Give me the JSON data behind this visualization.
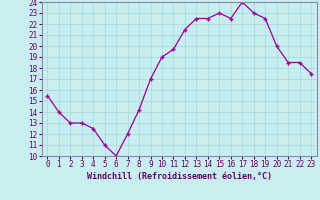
{
  "x": [
    0,
    1,
    2,
    3,
    4,
    5,
    6,
    7,
    8,
    9,
    10,
    11,
    12,
    13,
    14,
    15,
    16,
    17,
    18,
    19,
    20,
    21,
    22,
    23
  ],
  "y": [
    15.5,
    14.0,
    13.0,
    13.0,
    12.5,
    11.0,
    10.0,
    12.0,
    14.2,
    17.0,
    19.0,
    19.7,
    21.5,
    22.5,
    22.5,
    23.0,
    22.5,
    24.0,
    23.0,
    22.5,
    20.0,
    18.5,
    18.5,
    17.5
  ],
  "xlabel": "Windchill (Refroidissement éolien,°C)",
  "ylabel": "",
  "title": "",
  "bg_color": "#c8eef0",
  "line_color": "#990099",
  "marker_color": "#990099",
  "grid_color": "#aadddd",
  "spine_color": "#8888aa",
  "tick_color": "#660066",
  "xlim": [
    -0.5,
    23.5
  ],
  "ylim": [
    10,
    24
  ],
  "yticks": [
    10,
    11,
    12,
    13,
    14,
    15,
    16,
    17,
    18,
    19,
    20,
    21,
    22,
    23,
    24
  ],
  "xticks": [
    0,
    1,
    2,
    3,
    4,
    5,
    6,
    7,
    8,
    9,
    10,
    11,
    12,
    13,
    14,
    15,
    16,
    17,
    18,
    19,
    20,
    21,
    22,
    23
  ],
  "xlabel_fontsize": 6.0,
  "tick_fontsize": 5.5
}
